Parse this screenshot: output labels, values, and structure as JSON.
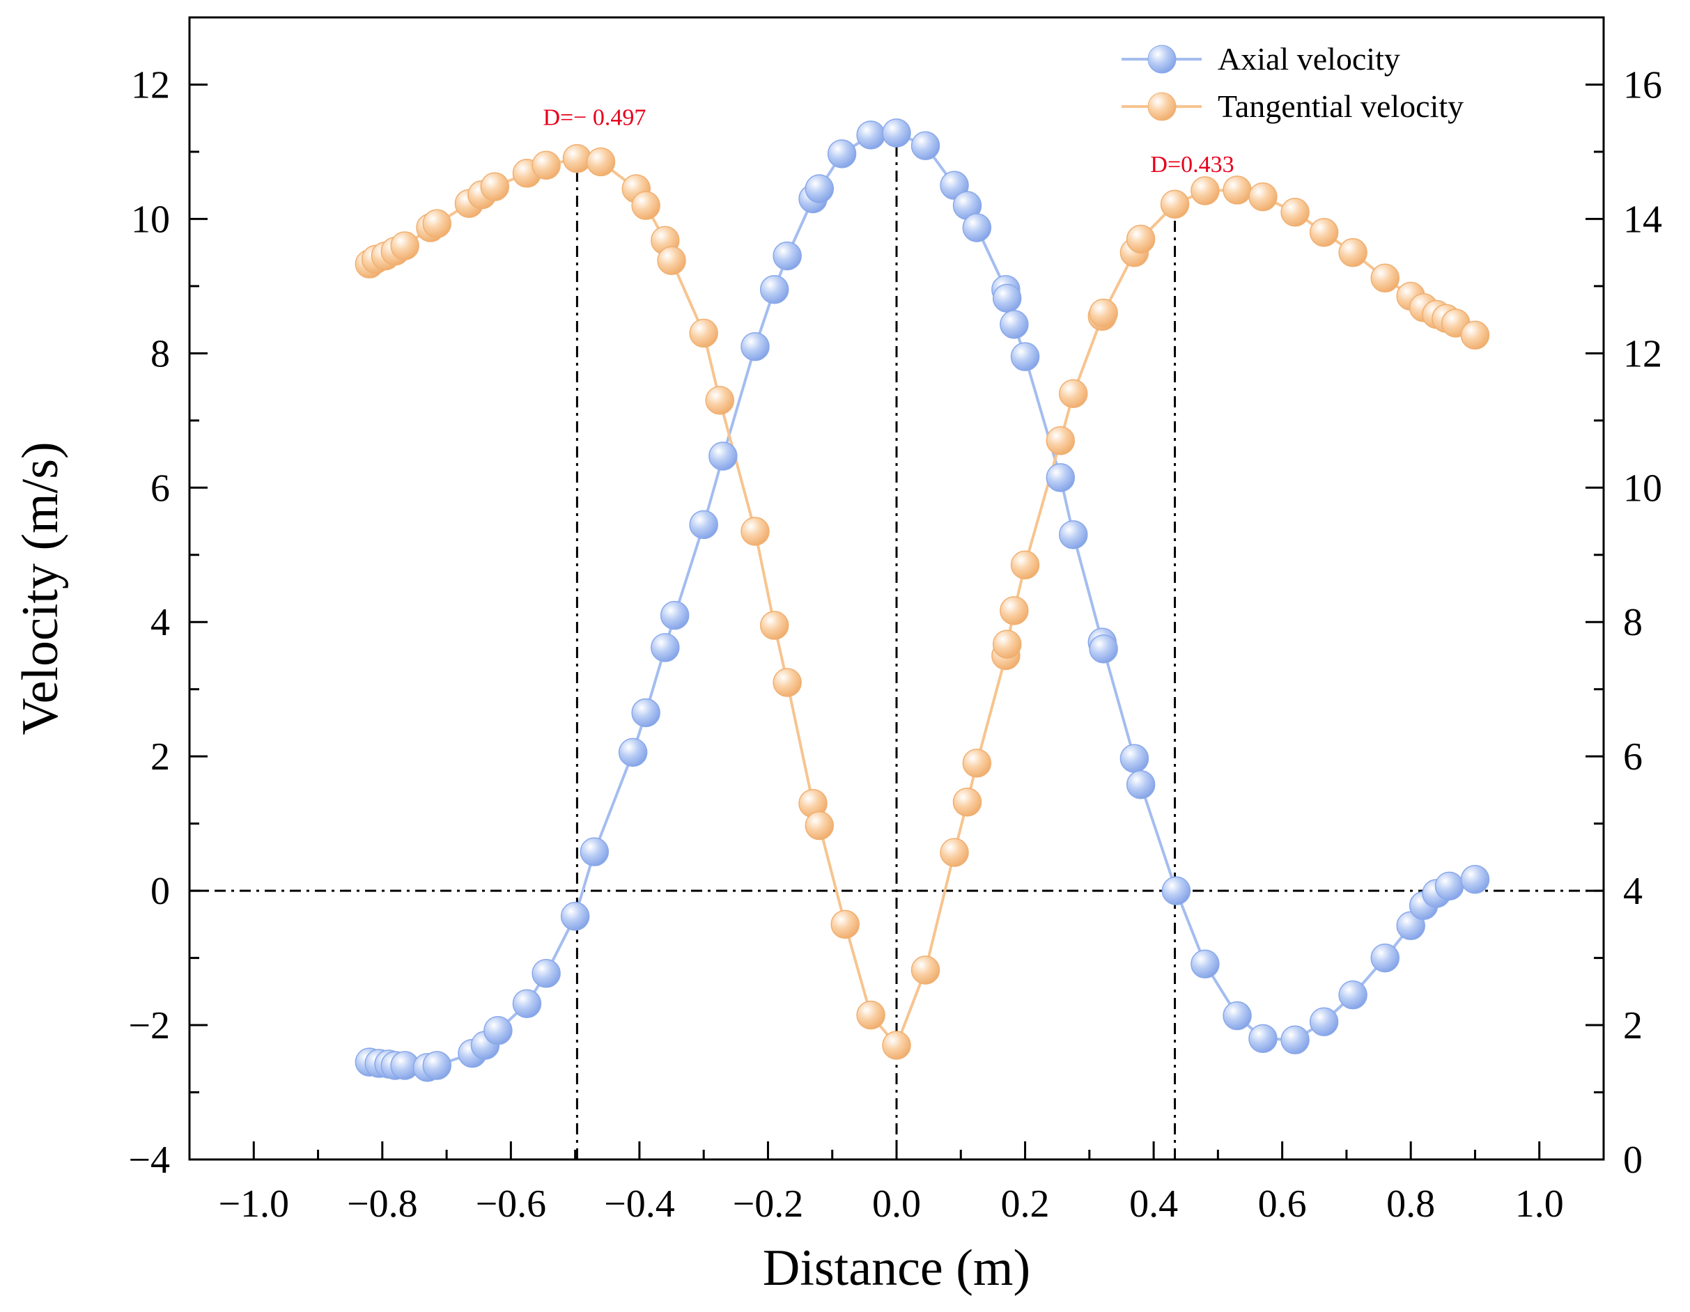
{
  "chart_data": {
    "type": "line",
    "xlabel": "Distance (m)",
    "ylabel": "Velocity (m/s)",
    "xlim": [
      -1.1,
      1.1
    ],
    "ylim": [
      -4,
      13
    ],
    "y2lim": [
      0,
      17
    ],
    "x_ticks": [
      -1.0,
      -0.8,
      -0.6,
      -0.4,
      -0.2,
      0.0,
      0.2,
      0.4,
      0.6,
      0.8,
      1.0
    ],
    "x_tick_labels": [
      "−1.0",
      "−0.8",
      "−0.6",
      "−0.4",
      "−0.2",
      "0.0",
      "0.2",
      "0.4",
      "0.6",
      "0.8",
      "1.0"
    ],
    "y_ticks": [
      -4,
      -2,
      0,
      2,
      4,
      6,
      8,
      10,
      12
    ],
    "y_tick_labels": [
      "−4",
      "−2",
      "0",
      "2",
      "4",
      "6",
      "8",
      "10",
      "12"
    ],
    "y2_ticks": [
      0,
      2,
      4,
      6,
      8,
      10,
      12,
      14,
      16
    ],
    "y2_tick_labels": [
      "0",
      "2",
      "4",
      "6",
      "8",
      "10",
      "12",
      "14",
      "16"
    ],
    "legend_position": "top-right",
    "series": [
      {
        "name": "Axial velocity",
        "axis": "left",
        "color": "#a4bdf0",
        "x": [
          -0.82,
          -0.805,
          -0.79,
          -0.78,
          -0.765,
          -0.73,
          -0.715,
          -0.66,
          -0.64,
          -0.62,
          -0.575,
          -0.545,
          -0.5,
          -0.47,
          -0.41,
          -0.39,
          -0.36,
          -0.345,
          -0.3,
          -0.27,
          -0.22,
          -0.19,
          -0.17,
          -0.13,
          -0.12,
          -0.085,
          -0.04,
          0.0,
          0.045,
          0.09,
          0.11,
          0.125,
          0.17,
          0.172,
          0.183,
          0.2,
          0.255,
          0.275,
          0.32,
          0.322,
          0.37,
          0.38,
          0.435,
          0.48,
          0.53,
          0.57,
          0.62,
          0.665,
          0.71,
          0.76,
          0.8,
          0.82,
          0.84,
          0.86,
          0.9
        ],
        "values": [
          -2.55,
          -2.57,
          -2.58,
          -2.6,
          -2.6,
          -2.63,
          -2.6,
          -2.42,
          -2.3,
          -2.08,
          -1.68,
          -1.23,
          -0.38,
          0.58,
          2.06,
          2.65,
          3.62,
          4.1,
          5.45,
          6.47,
          8.1,
          8.95,
          9.45,
          10.3,
          10.45,
          10.97,
          11.25,
          11.28,
          11.09,
          10.5,
          10.2,
          9.87,
          8.95,
          8.82,
          8.43,
          7.95,
          6.15,
          5.3,
          3.7,
          3.6,
          1.97,
          1.58,
          0.0,
          -1.09,
          -1.86,
          -2.2,
          -2.22,
          -1.95,
          -1.55,
          -1.0,
          -0.52,
          -0.22,
          -0.04,
          0.07,
          0.17
        ]
      },
      {
        "name": "Tangential velocity",
        "axis": "right",
        "color": "#f7c48f",
        "x": [
          -0.82,
          -0.81,
          -0.795,
          -0.78,
          -0.765,
          -0.725,
          -0.715,
          -0.665,
          -0.645,
          -0.625,
          -0.575,
          -0.545,
          -0.497,
          -0.46,
          -0.405,
          -0.39,
          -0.36,
          -0.35,
          -0.3,
          -0.275,
          -0.22,
          -0.19,
          -0.17,
          -0.13,
          -0.12,
          -0.08,
          -0.04,
          0.0,
          0.045,
          0.09,
          0.11,
          0.125,
          0.17,
          0.172,
          0.183,
          0.2,
          0.255,
          0.275,
          0.32,
          0.322,
          0.37,
          0.38,
          0.433,
          0.48,
          0.53,
          0.57,
          0.62,
          0.665,
          0.71,
          0.76,
          0.8,
          0.82,
          0.84,
          0.855,
          0.87,
          0.9
        ],
        "values": [
          13.33,
          13.4,
          13.45,
          13.52,
          13.6,
          13.87,
          13.93,
          14.23,
          14.36,
          14.48,
          14.68,
          14.8,
          14.9,
          14.85,
          14.45,
          14.2,
          13.68,
          13.38,
          12.3,
          11.3,
          9.35,
          7.95,
          7.1,
          5.3,
          4.97,
          3.5,
          2.15,
          1.7,
          2.82,
          4.57,
          5.32,
          5.9,
          7.5,
          7.67,
          8.17,
          8.85,
          10.7,
          11.4,
          12.55,
          12.6,
          13.5,
          13.7,
          14.22,
          14.42,
          14.43,
          14.33,
          14.1,
          13.8,
          13.5,
          13.12,
          12.85,
          12.68,
          12.58,
          12.52,
          12.45,
          12.27
        ]
      }
    ],
    "reference_lines": [
      {
        "orientation": "horizontal",
        "axis": "left",
        "value": 0
      },
      {
        "orientation": "vertical",
        "value": -0.497,
        "y_to": 14.85
      },
      {
        "orientation": "vertical",
        "value": 0.0,
        "y_to": 11.25
      },
      {
        "orientation": "vertical",
        "value": 0.433,
        "y_to": 14.22
      }
    ],
    "annotations": [
      {
        "text": "D=− 0.497",
        "x": -0.497,
        "y_right": 15.4,
        "color": "#e8001c"
      },
      {
        "text": "D=0.433",
        "x": 0.433,
        "y_right": 14.7,
        "color": "#e8001c"
      }
    ]
  }
}
